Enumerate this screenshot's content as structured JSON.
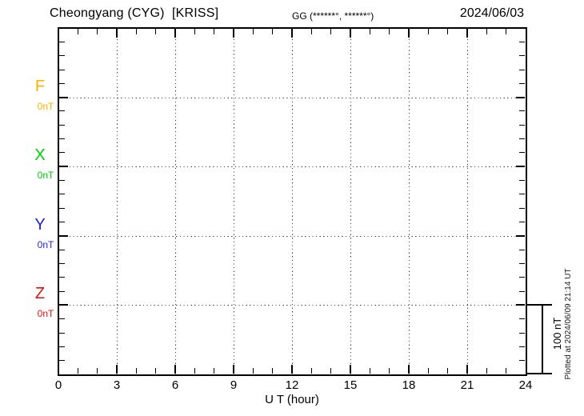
{
  "header": {
    "station_title": "Cheongyang (CYG)  [KRISS]",
    "gg_label": "GG (******°, ******°)",
    "date": "2024/06/03"
  },
  "components": [
    {
      "label": "F",
      "value": "0nT",
      "color": "#FFB000"
    },
    {
      "label": "X",
      "value": "0nT",
      "color": "#00CC00"
    },
    {
      "label": "Y",
      "value": "0nT",
      "color": "#2222DD"
    },
    {
      "label": "Z",
      "value": "0nT",
      "color": "#DD1111"
    }
  ],
  "x_axis": {
    "label": "U T (hour)",
    "ticks": [
      0,
      3,
      6,
      9,
      12,
      15,
      18,
      21,
      24
    ]
  },
  "scale_bar": {
    "label": "100 nT",
    "value_nT": 100
  },
  "footer_note": "Plotted at 2024/06/09 21:14 UT",
  "chart_data": {
    "type": "line",
    "title": "Cheongyang (CYG) [KRISS] magnetogram, 2024/06/03",
    "xlabel": "U T (hour)",
    "xlim": [
      0,
      24
    ],
    "x_major_ticks": [
      0,
      3,
      6,
      9,
      12,
      15,
      18,
      21,
      24
    ],
    "x_minor_step_hours": 1,
    "y_scale": {
      "major_division_nT": 100,
      "minor_tick_nT": 20
    },
    "grid": true,
    "legend_position": "left-margin",
    "series": [
      {
        "name": "F",
        "baseline_nT": 0,
        "color": "#FFB000",
        "x": [],
        "values": []
      },
      {
        "name": "X",
        "baseline_nT": 0,
        "color": "#00CC00",
        "x": [],
        "values": []
      },
      {
        "name": "Y",
        "baseline_nT": 0,
        "color": "#2222DD",
        "x": [],
        "values": []
      },
      {
        "name": "Z",
        "baseline_nT": 0,
        "color": "#DD1111",
        "x": [],
        "values": []
      }
    ],
    "note": "No data traces are drawn; only the dotted 0 nT baselines of each component are visible."
  }
}
